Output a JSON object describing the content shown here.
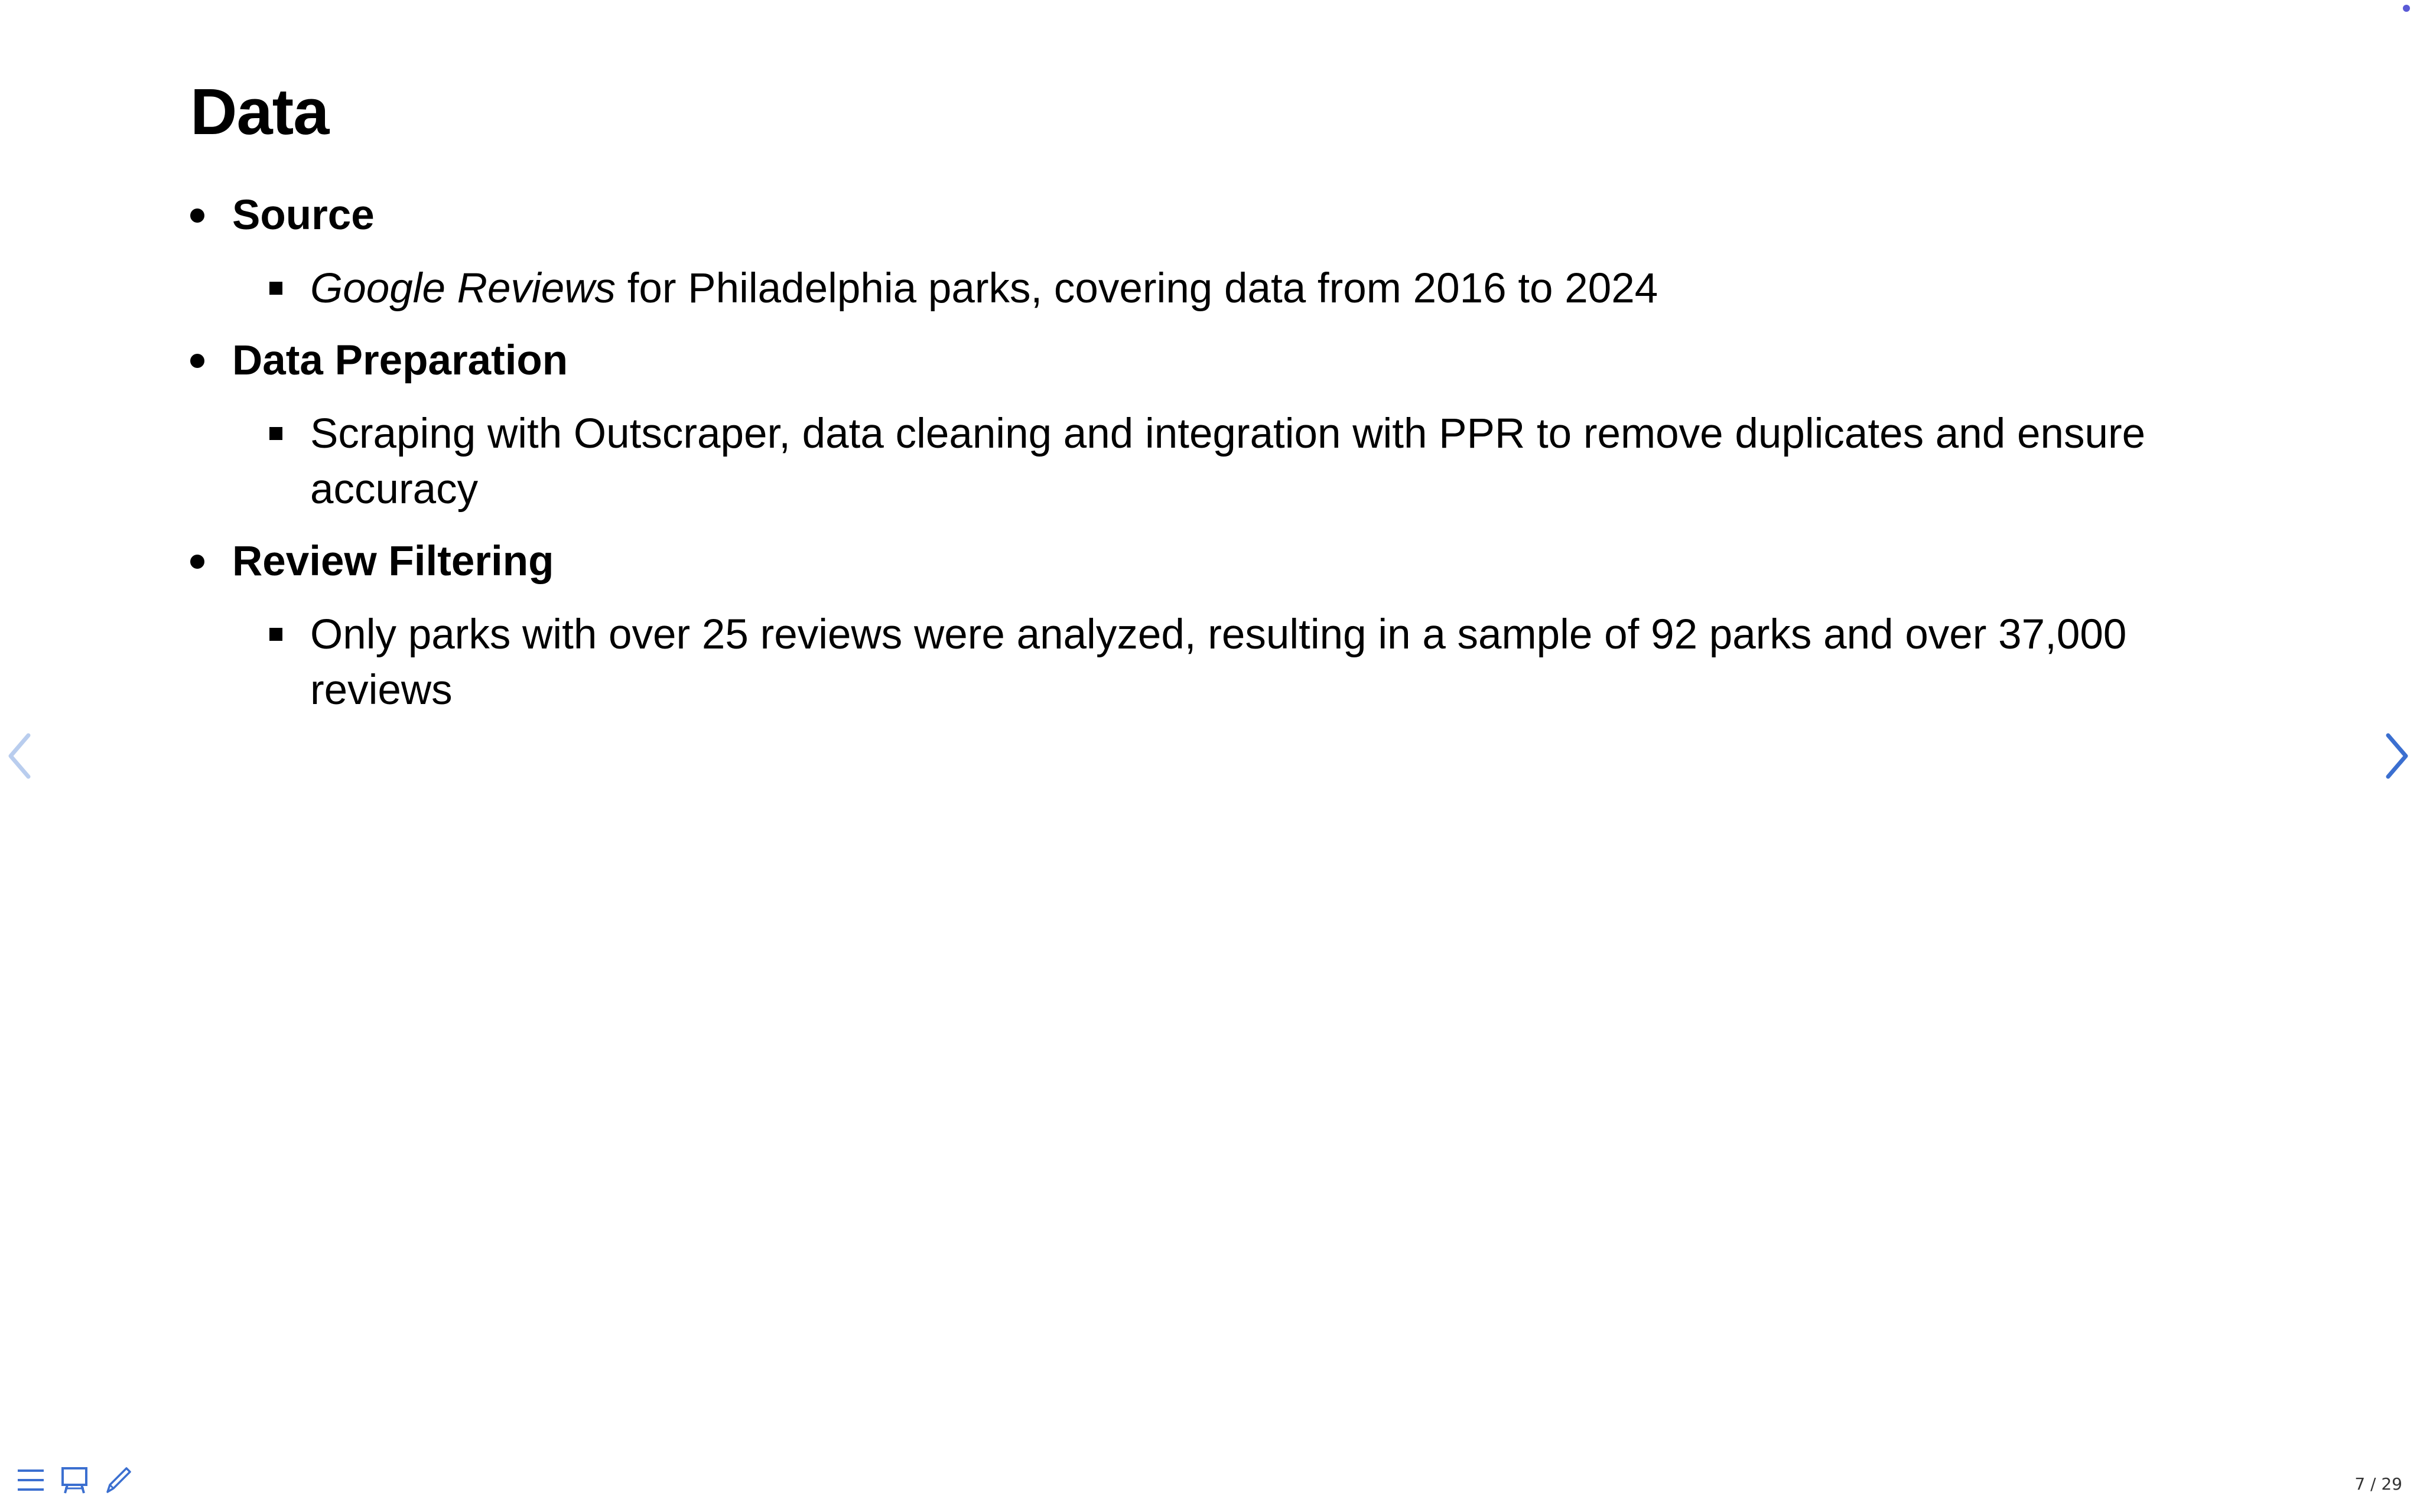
{
  "slide": {
    "title": "Data",
    "sections": [
      {
        "heading": "Source",
        "items": [
          {
            "emphasis": "Google Reviews",
            "text": " for Philadelphia parks, covering data from 2016 to 2024"
          }
        ]
      },
      {
        "heading": "Data Preparation",
        "items": [
          {
            "emphasis": "",
            "text": "Scraping with Outscraper, data cleaning and integration with PPR to remove duplicates and ensure accuracy"
          }
        ]
      },
      {
        "heading": "Review Filtering",
        "items": [
          {
            "emphasis": "",
            "text": "Only parks with over 25 reviews were analyzed, resulting in a sample of 92 parks and over 37,000 reviews"
          }
        ]
      }
    ]
  },
  "navigation": {
    "prev_icon": "chevron-left-icon",
    "next_icon": "chevron-right-icon"
  },
  "toolbar": {
    "icons": [
      "menu-icon",
      "presenter-icon",
      "pen-icon"
    ]
  },
  "status": {
    "page_counter": "7 / 29"
  },
  "colors": {
    "accent": "#3b6fd0",
    "accent_disabled": "#b9cdee",
    "text": "#000000"
  }
}
